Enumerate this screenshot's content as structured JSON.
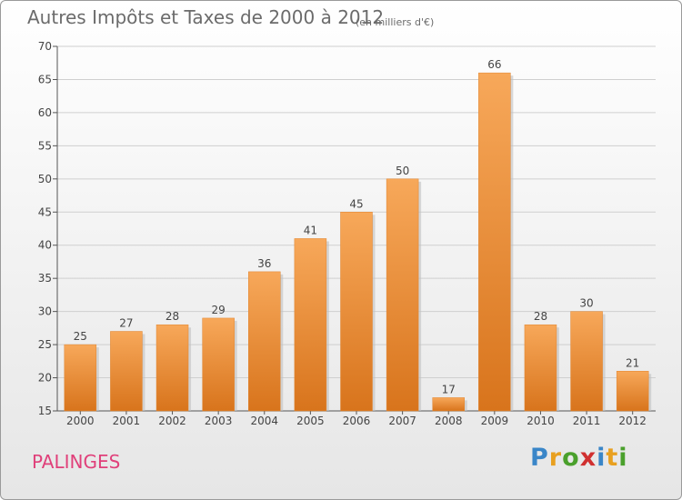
{
  "title": "Autres Impôts et Taxes de 2000 à 2012",
  "subtitle": "(en milliers d'€)",
  "commune": "PALINGES",
  "logo": {
    "text": "Proxiti",
    "letters": [
      {
        "ch": "P",
        "color": "#3a86c8"
      },
      {
        "ch": "r",
        "color": "#e8a020"
      },
      {
        "ch": "o",
        "color": "#4aa02c"
      },
      {
        "ch": "x",
        "color": "#d03030"
      },
      {
        "ch": "i",
        "color": "#3a86c8"
      },
      {
        "ch": "t",
        "color": "#e8a020"
      },
      {
        "ch": "i",
        "color": "#4aa02c"
      }
    ]
  },
  "colors": {
    "bar": "#f08c2c",
    "bar_light": "#f7a85a",
    "bar_dark": "#d8741c"
  },
  "chart_data": {
    "type": "bar",
    "categories": [
      "2000",
      "2001",
      "2002",
      "2003",
      "2004",
      "2005",
      "2006",
      "2007",
      "2008",
      "2009",
      "2010",
      "2011",
      "2012"
    ],
    "values": [
      25,
      27,
      28,
      29,
      36,
      41,
      45,
      50,
      17,
      66,
      28,
      30,
      21
    ],
    "ylim": [
      15,
      70
    ],
    "yticks": [
      15,
      20,
      25,
      30,
      35,
      40,
      45,
      50,
      55,
      60,
      65,
      70
    ],
    "grid": true
  }
}
